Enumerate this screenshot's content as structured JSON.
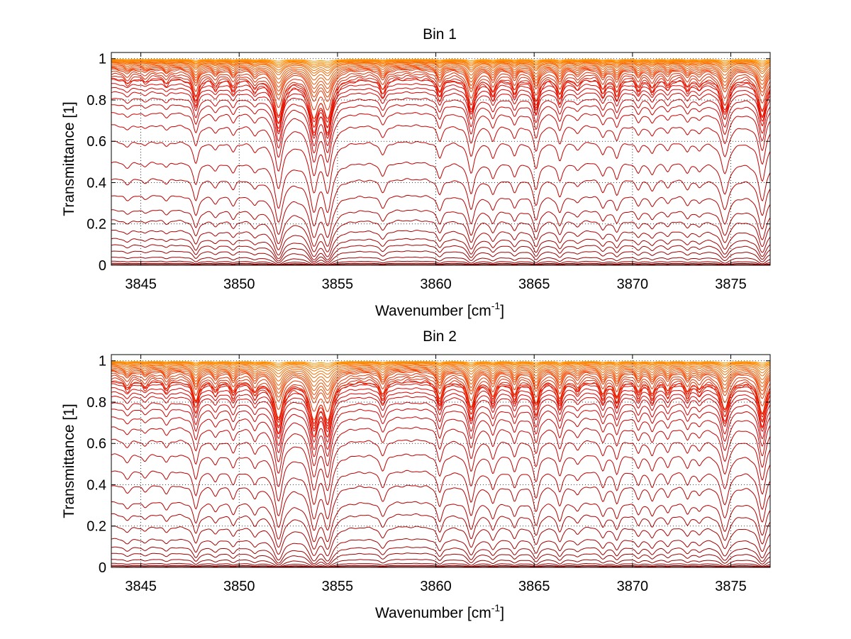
{
  "chart_data": [
    {
      "type": "line",
      "title": "Bin 1",
      "xlabel": "Wavenumber [cm",
      "xlabel_sup": "-1",
      "xlabel_end": "]",
      "ylabel": "Transmittance [1]",
      "xlim": [
        3843.5,
        3877
      ],
      "ylim": [
        0,
        1.03
      ],
      "xticks": [
        3845,
        3850,
        3855,
        3860,
        3865,
        3870,
        3875
      ],
      "yticks": [
        0,
        0.2,
        0.4,
        0.6,
        0.8,
        1
      ],
      "ytick_labels": [
        "0",
        "0.2",
        "0.4",
        "0.6",
        "0.8",
        "1"
      ],
      "grid": true,
      "series_count": 40,
      "baseline_levels": [
        0.005,
        0.01,
        0.02,
        0.04,
        0.07,
        0.1,
        0.13,
        0.17,
        0.22,
        0.27,
        0.34,
        0.42,
        0.5,
        0.6,
        0.68,
        0.74,
        0.78,
        0.81,
        0.84,
        0.86,
        0.88,
        0.9,
        0.91,
        0.92,
        0.93,
        0.94,
        0.95,
        0.955,
        0.96,
        0.965,
        0.97,
        0.975,
        0.98,
        0.983,
        0.986,
        0.989,
        0.991,
        0.993,
        0.995,
        0.997
      ],
      "absorption_lines": [
        {
          "x": 3844.3,
          "depth": 0.08,
          "width": 0.18
        },
        {
          "x": 3845.2,
          "depth": 0.06,
          "width": 0.15
        },
        {
          "x": 3846.3,
          "depth": 0.07,
          "width": 0.15
        },
        {
          "x": 3847.8,
          "depth": 0.35,
          "width": 0.16
        },
        {
          "x": 3848.8,
          "depth": 0.12,
          "width": 0.15
        },
        {
          "x": 3849.7,
          "depth": 0.15,
          "width": 0.15
        },
        {
          "x": 3850.8,
          "depth": 0.14,
          "width": 0.15
        },
        {
          "x": 3852.0,
          "depth": 0.85,
          "width": 0.22
        },
        {
          "x": 3853.8,
          "depth": 0.9,
          "width": 0.22
        },
        {
          "x": 3854.5,
          "depth": 0.9,
          "width": 0.22
        },
        {
          "x": 3857.3,
          "depth": 0.2,
          "width": 0.18
        },
        {
          "x": 3860.2,
          "depth": 0.25,
          "width": 0.16
        },
        {
          "x": 3861.8,
          "depth": 0.55,
          "width": 0.18
        },
        {
          "x": 3862.9,
          "depth": 0.25,
          "width": 0.15
        },
        {
          "x": 3864.0,
          "depth": 0.2,
          "width": 0.15
        },
        {
          "x": 3865.1,
          "depth": 0.45,
          "width": 0.16
        },
        {
          "x": 3866.3,
          "depth": 0.3,
          "width": 0.15
        },
        {
          "x": 3867.2,
          "depth": 0.12,
          "width": 0.15
        },
        {
          "x": 3868.5,
          "depth": 0.2,
          "width": 0.15
        },
        {
          "x": 3869.2,
          "depth": 0.25,
          "width": 0.15
        },
        {
          "x": 3870.3,
          "depth": 0.15,
          "width": 0.15
        },
        {
          "x": 3871.0,
          "depth": 0.18,
          "width": 0.15
        },
        {
          "x": 3871.8,
          "depth": 0.12,
          "width": 0.15
        },
        {
          "x": 3872.8,
          "depth": 0.15,
          "width": 0.15
        },
        {
          "x": 3873.4,
          "depth": 0.12,
          "width": 0.15
        },
        {
          "x": 3874.7,
          "depth": 0.55,
          "width": 0.22
        },
        {
          "x": 3876.6,
          "depth": 0.7,
          "width": 0.2
        }
      ],
      "colors": {
        "deep": "#8b0000",
        "mid": "#e00000",
        "high": "#ff9900"
      }
    },
    {
      "type": "line",
      "title": "Bin 2",
      "xlabel": "Wavenumber [cm",
      "xlabel_sup": "-1",
      "xlabel_end": "]",
      "ylabel": "Transmittance [1]",
      "xlim": [
        3843.5,
        3877
      ],
      "ylim": [
        0,
        1.03
      ],
      "xticks": [
        3845,
        3850,
        3855,
        3860,
        3865,
        3870,
        3875
      ],
      "yticks": [
        0,
        0.2,
        0.4,
        0.6,
        0.8,
        1
      ],
      "ytick_labels": [
        "0",
        "0.2",
        "0.4",
        "0.6",
        "0.8",
        "1"
      ],
      "grid": true,
      "series_count": 40,
      "baseline_levels": [
        0.005,
        0.01,
        0.02,
        0.04,
        0.07,
        0.1,
        0.14,
        0.2,
        0.26,
        0.32,
        0.4,
        0.47,
        0.55,
        0.62,
        0.68,
        0.73,
        0.77,
        0.8,
        0.83,
        0.85,
        0.87,
        0.89,
        0.9,
        0.91,
        0.92,
        0.93,
        0.94,
        0.95,
        0.955,
        0.96,
        0.965,
        0.97,
        0.975,
        0.98,
        0.984,
        0.988,
        0.991,
        0.993,
        0.995,
        0.997
      ],
      "absorption_lines": [
        {
          "x": 3844.3,
          "depth": 0.12,
          "width": 0.18
        },
        {
          "x": 3845.2,
          "depth": 0.1,
          "width": 0.15
        },
        {
          "x": 3846.3,
          "depth": 0.12,
          "width": 0.15
        },
        {
          "x": 3847.8,
          "depth": 0.4,
          "width": 0.16
        },
        {
          "x": 3848.8,
          "depth": 0.15,
          "width": 0.15
        },
        {
          "x": 3849.7,
          "depth": 0.2,
          "width": 0.15
        },
        {
          "x": 3850.8,
          "depth": 0.2,
          "width": 0.15
        },
        {
          "x": 3852.0,
          "depth": 0.85,
          "width": 0.22
        },
        {
          "x": 3853.8,
          "depth": 0.88,
          "width": 0.22
        },
        {
          "x": 3854.5,
          "depth": 0.88,
          "width": 0.22
        },
        {
          "x": 3857.3,
          "depth": 0.25,
          "width": 0.18
        },
        {
          "x": 3860.2,
          "depth": 0.35,
          "width": 0.16
        },
        {
          "x": 3861.8,
          "depth": 0.55,
          "width": 0.18
        },
        {
          "x": 3862.9,
          "depth": 0.3,
          "width": 0.15
        },
        {
          "x": 3864.0,
          "depth": 0.25,
          "width": 0.15
        },
        {
          "x": 3865.1,
          "depth": 0.45,
          "width": 0.16
        },
        {
          "x": 3866.3,
          "depth": 0.35,
          "width": 0.15
        },
        {
          "x": 3867.2,
          "depth": 0.15,
          "width": 0.15
        },
        {
          "x": 3868.5,
          "depth": 0.25,
          "width": 0.15
        },
        {
          "x": 3869.2,
          "depth": 0.3,
          "width": 0.15
        },
        {
          "x": 3870.3,
          "depth": 0.2,
          "width": 0.15
        },
        {
          "x": 3871.0,
          "depth": 0.25,
          "width": 0.15
        },
        {
          "x": 3871.8,
          "depth": 0.18,
          "width": 0.15
        },
        {
          "x": 3872.8,
          "depth": 0.2,
          "width": 0.15
        },
        {
          "x": 3873.4,
          "depth": 0.15,
          "width": 0.15
        },
        {
          "x": 3874.7,
          "depth": 0.6,
          "width": 0.22
        },
        {
          "x": 3876.6,
          "depth": 0.72,
          "width": 0.2
        }
      ],
      "colors": {
        "deep": "#8b0000",
        "mid": "#e00000",
        "high": "#ff9900"
      }
    }
  ]
}
